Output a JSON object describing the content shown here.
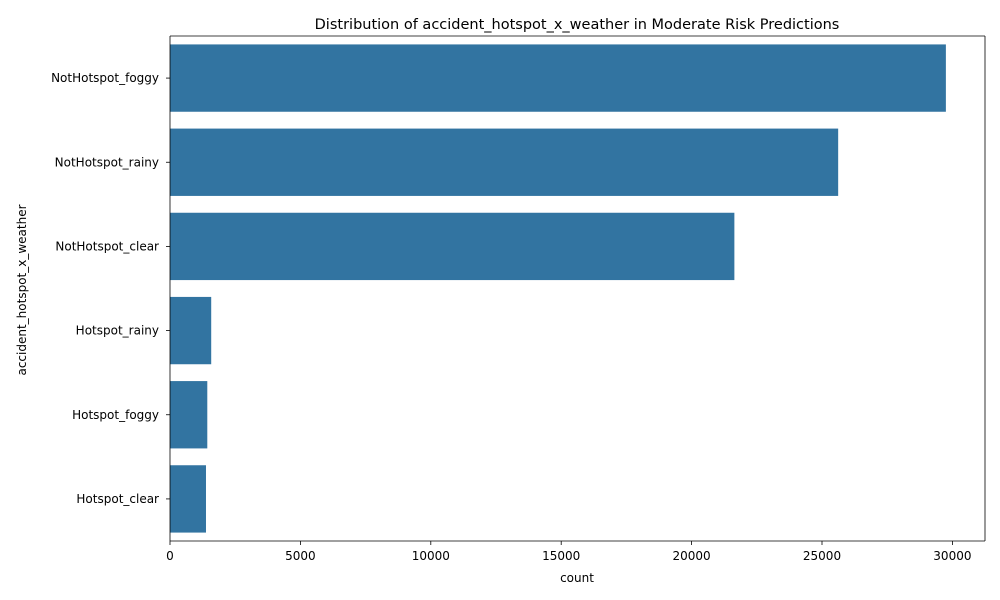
{
  "chart_data": {
    "type": "bar",
    "orientation": "horizontal",
    "title": "Distribution of accident_hotspot_x_weather in Moderate Risk Predictions",
    "xlabel": "count",
    "ylabel": "accident_hotspot_x_weather",
    "categories": [
      "NotHotspot_foggy",
      "NotHotspot_rainy",
      "NotHotspot_clear",
      "Hotspot_rainy",
      "Hotspot_foggy",
      "Hotspot_clear"
    ],
    "values": [
      29750,
      25620,
      21640,
      1580,
      1430,
      1380
    ],
    "xlim": [
      0,
      31250
    ],
    "xticks": [
      0,
      5000,
      10000,
      15000,
      20000,
      25000,
      30000
    ],
    "bar_color": "#3274a1",
    "grid": false,
    "legend": "none"
  }
}
